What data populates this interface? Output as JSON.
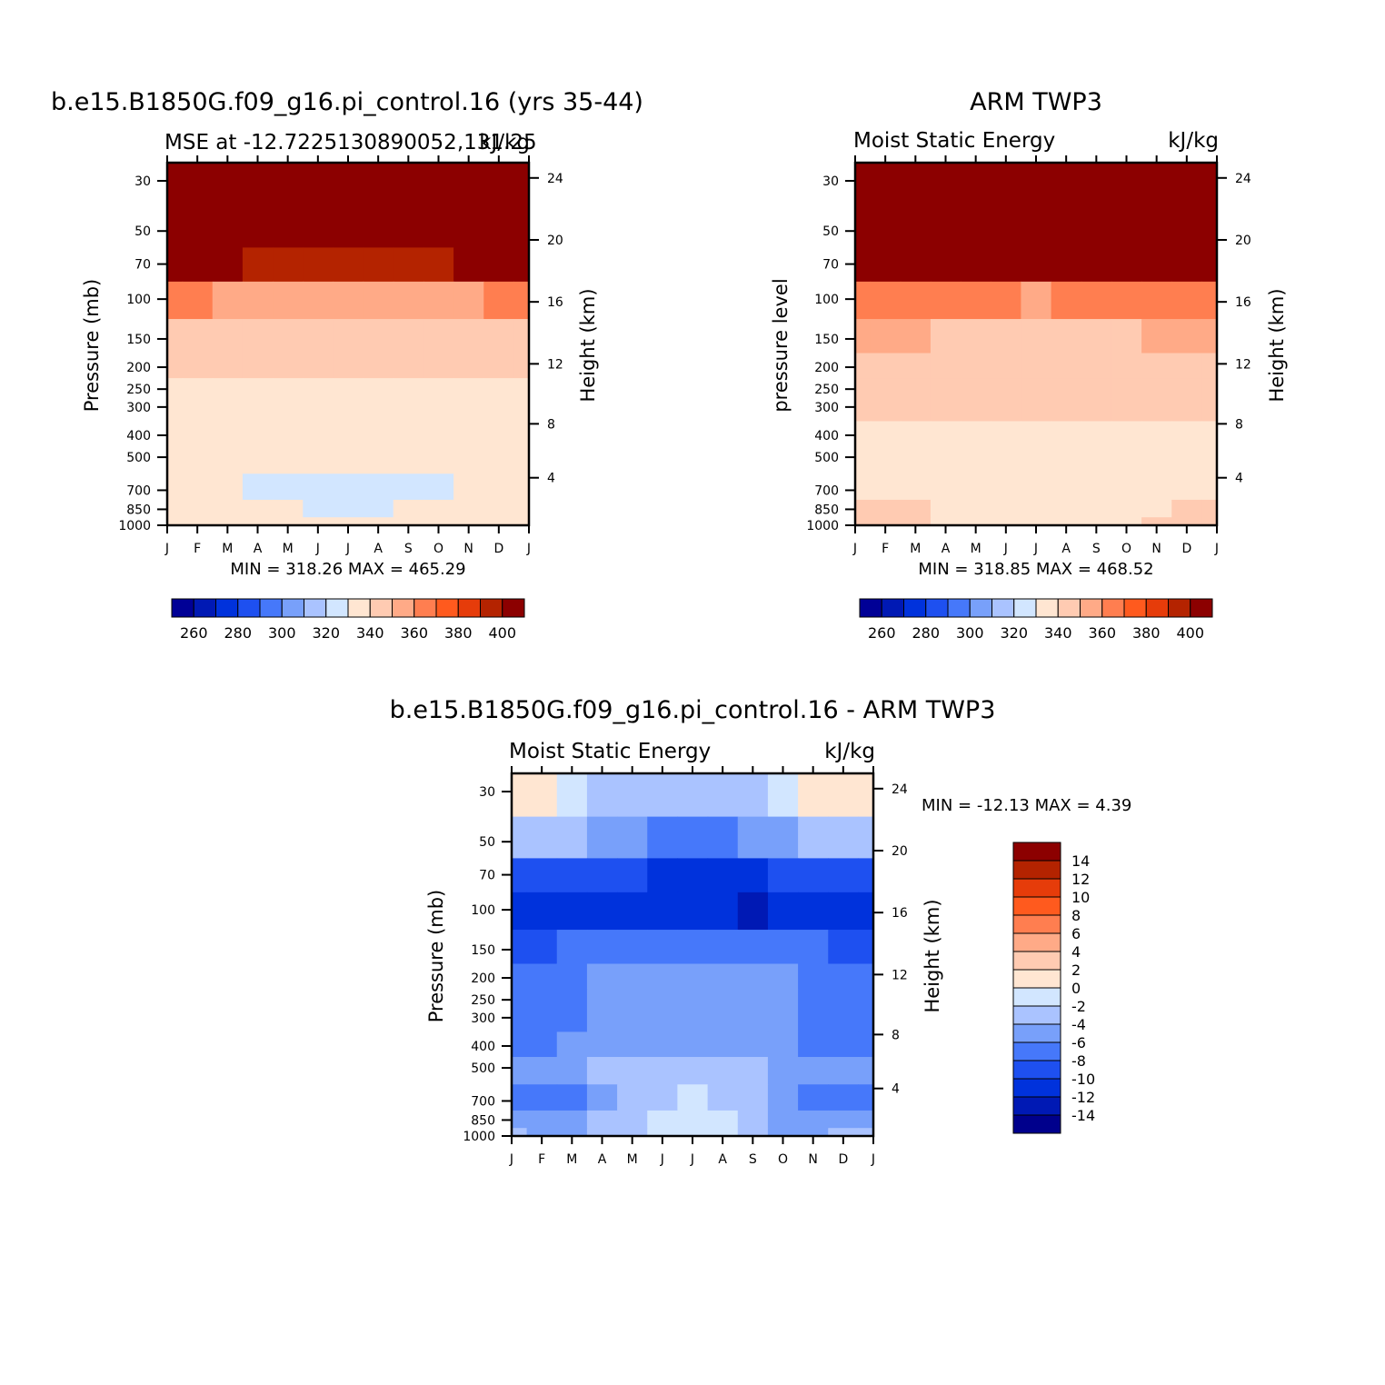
{
  "colors": {
    "mse_levels": [
      "#000096",
      "#0019b4",
      "#0032dc",
      "#1e50f0",
      "#4678fa",
      "#78a0fa",
      "#aac3ff",
      "#d2e6ff",
      "#ffe6d2",
      "#ffcbb2",
      "#ffaa87",
      "#ff7e50",
      "#ff5a1e",
      "#e63c0a",
      "#b42300",
      "#8c0000"
    ],
    "diff_levels": [
      "#00008c",
      "#0019b4",
      "#0032dc",
      "#1e50f0",
      "#4678fa",
      "#78a0fa",
      "#aac3ff",
      "#d2e6ff",
      "#ffe6d2",
      "#ffcbb2",
      "#ffaa87",
      "#ff7e50",
      "#ff5a1e",
      "#e63c0a",
      "#b42300",
      "#8c0000"
    ]
  },
  "panels": {
    "model": {
      "title": "b.e15.B1850G.f09_g16.pi_control.16 (yrs 35-44)",
      "left_string": "MSE at -12.7225130890052,131.25",
      "right_string": "kJ/kg",
      "ylabel_left": "Pressure (mb)",
      "ylabel_right": "Height (km)",
      "stats": "MIN = 318.26  MAX = 465.29"
    },
    "obs": {
      "title": "ARM TWP3",
      "left_string": "Moist Static Energy",
      "right_string": "kJ/kg",
      "ylabel_left": "pressure level",
      "ylabel_right": "Height (km)",
      "stats": "MIN = 318.85  MAX = 468.52"
    },
    "diff": {
      "title": "b.e15.B1850G.f09_g16.pi_control.16 - ARM TWP3",
      "left_string": "Moist Static Energy",
      "right_string": "kJ/kg",
      "ylabel_left": "Pressure (mb)",
      "ylabel_right": "Height (km)",
      "stats": "MIN = -12.13 MAX =    4.39"
    }
  },
  "chart_data": [
    {
      "type": "heatmap",
      "title": "b.e15.B1850G.f09_g16.pi_control.16 (yrs 35-44)",
      "x": [
        "J",
        "F",
        "M",
        "A",
        "M",
        "J",
        "J",
        "A",
        "S",
        "O",
        "N",
        "D",
        "J"
      ],
      "y_pressure_mb": [
        30,
        50,
        70,
        100,
        150,
        200,
        250,
        300,
        400,
        500,
        700,
        850,
        1000
      ],
      "y_height_km": [
        4,
        8,
        12,
        16,
        20,
        24
      ],
      "xlabel": "",
      "ylabel": "Pressure (mb)",
      "ylabel_right": "Height (km)",
      "units": "kJ/kg",
      "colorbar_labels": [
        "260",
        "280",
        "300",
        "320",
        "340",
        "360",
        "380",
        "400"
      ],
      "colorbar_levels": [
        255,
        260,
        265,
        270,
        275,
        280,
        285,
        290,
        295,
        300,
        305,
        310,
        315,
        320,
        325,
        330,
        335,
        340,
        345,
        350,
        355,
        360,
        365,
        370,
        375,
        380,
        385,
        390,
        395,
        400
      ],
      "min": 318.26,
      "max": 465.29,
      "values": [
        [
          420,
          420,
          420,
          420,
          420,
          420,
          420,
          420,
          420,
          420,
          420,
          420,
          420
        ],
        [
          400,
          400,
          398,
          397,
          396,
          395,
          394,
          395,
          396,
          397,
          398,
          399,
          400
        ],
        [
          388,
          387,
          386,
          385,
          384,
          383,
          382,
          383,
          384,
          385,
          386,
          387,
          388
        ],
        [
          355,
          354,
          353,
          352,
          352,
          351,
          351,
          351,
          352,
          352,
          353,
          354,
          355
        ],
        [
          343,
          343,
          342,
          341,
          341,
          341,
          341,
          341,
          341,
          340,
          340,
          340,
          342
        ],
        [
          338,
          338,
          338,
          338,
          338,
          338,
          338,
          338,
          338,
          338,
          338,
          338,
          338
        ],
        [
          335,
          335,
          335,
          335,
          335,
          335,
          335,
          335,
          335,
          335,
          335,
          335,
          335
        ],
        [
          333,
          333,
          333,
          333,
          333,
          333,
          333,
          333,
          333,
          333,
          333,
          333,
          333
        ],
        [
          330,
          330,
          330,
          330,
          329,
          329,
          329,
          329,
          329,
          329,
          330,
          330,
          330
        ],
        [
          327,
          327,
          327,
          326,
          325,
          325,
          325,
          325,
          325,
          325,
          326,
          327,
          327
        ],
        [
          325,
          325,
          325,
          324,
          323,
          322,
          322,
          322,
          323,
          324,
          325,
          325,
          325
        ],
        [
          330,
          330,
          328,
          326,
          325,
          324,
          324,
          324,
          325,
          326,
          328,
          330,
          330
        ],
        [
          337,
          336,
          334,
          332,
          329,
          328,
          328,
          328,
          329,
          332,
          334,
          336,
          337
        ]
      ]
    },
    {
      "type": "heatmap",
      "title": "ARM TWP3",
      "x": [
        "J",
        "F",
        "M",
        "A",
        "M",
        "J",
        "J",
        "A",
        "S",
        "O",
        "N",
        "D",
        "J"
      ],
      "y_pressure_mb": [
        30,
        50,
        70,
        100,
        150,
        200,
        250,
        300,
        400,
        500,
        700,
        850,
        1000
      ],
      "y_height_km": [
        4,
        8,
        12,
        16,
        20,
        24
      ],
      "xlabel": "",
      "ylabel": "pressure level",
      "ylabel_right": "Height (km)",
      "units": "kJ/kg",
      "colorbar_labels": [
        "260",
        "280",
        "300",
        "320",
        "340",
        "360",
        "380",
        "400"
      ],
      "colorbar_levels": [
        255,
        260,
        265,
        270,
        275,
        280,
        285,
        290,
        295,
        300,
        305,
        310,
        315,
        320,
        325,
        330,
        335,
        340,
        345,
        350,
        355,
        360,
        365,
        370,
        375,
        380,
        385,
        390,
        395,
        400
      ],
      "min": 318.85,
      "max": 468.52,
      "values": [
        [
          420,
          420,
          420,
          420,
          420,
          420,
          420,
          420,
          420,
          420,
          420,
          420,
          420
        ],
        [
          403,
          402,
          401,
          400,
          399,
          398,
          397,
          398,
          399,
          400,
          401,
          402,
          403
        ],
        [
          391,
          390,
          389,
          388,
          387,
          386,
          386,
          386,
          387,
          388,
          389,
          390,
          391
        ],
        [
          358,
          357,
          356,
          355,
          354,
          354,
          353,
          354,
          354,
          355,
          356,
          357,
          358
        ],
        [
          346,
          346,
          346,
          345,
          345,
          345,
          345,
          345,
          345,
          345,
          346,
          346,
          346
        ],
        [
          343,
          343,
          343,
          343,
          343,
          343,
          343,
          343,
          343,
          343,
          343,
          343,
          343
        ],
        [
          341,
          341,
          341,
          341,
          341,
          341,
          341,
          341,
          341,
          341,
          341,
          341,
          341
        ],
        [
          339,
          339,
          339,
          339,
          338,
          338,
          338,
          338,
          338,
          338,
          339,
          339,
          339
        ],
        [
          337,
          337,
          337,
          336,
          334,
          334,
          334,
          334,
          334,
          335,
          336,
          337,
          337
        ],
        [
          336,
          336,
          336,
          335,
          333,
          333,
          333,
          333,
          333,
          334,
          335,
          336,
          336
        ],
        [
          335,
          335,
          334,
          332,
          328,
          327,
          326,
          327,
          328,
          331,
          333,
          334,
          335
        ],
        [
          340,
          340,
          338,
          335,
          332,
          331,
          331,
          331,
          332,
          335,
          337,
          339,
          340
        ],
        [
          343,
          342,
          340,
          337,
          334,
          333,
          333,
          333,
          334,
          337,
          339,
          341,
          343
        ]
      ]
    },
    {
      "type": "heatmap",
      "title": "b.e15.B1850G.f09_g16.pi_control.16 - ARM TWP3",
      "x": [
        "J",
        "F",
        "M",
        "A",
        "M",
        "J",
        "J",
        "A",
        "S",
        "O",
        "N",
        "D",
        "J"
      ],
      "y_pressure_mb": [
        30,
        50,
        70,
        100,
        150,
        200,
        250,
        300,
        400,
        500,
        700,
        850,
        1000
      ],
      "y_height_km": [
        4,
        8,
        12,
        16,
        20,
        24
      ],
      "xlabel": "",
      "ylabel": "Pressure (mb)",
      "ylabel_right": "Height (km)",
      "units": "kJ/kg",
      "colorbar_labels": [
        "14",
        "12",
        "10",
        "8",
        "6",
        "4",
        "2",
        "0",
        "-2",
        "-4",
        "-6",
        "-8",
        "-10",
        "-12",
        "-14"
      ],
      "colorbar_levels": [
        -14,
        -12,
        -10,
        -8,
        -6,
        -4,
        -2,
        0,
        2,
        4,
        6,
        8,
        10,
        12,
        14
      ],
      "min": -12.13,
      "max": 4.39,
      "values": [
        [
          1.5,
          0.8,
          -1.0,
          -3.0,
          -4.0,
          -4.0,
          -3.5,
          -3.0,
          -2.5,
          -1.0,
          0.5,
          1.2,
          1.5
        ],
        [
          -2.5,
          -3.0,
          -4.0,
          -5.0,
          -6.0,
          -6.5,
          -6.8,
          -6.5,
          -6.0,
          -5.0,
          -4.0,
          -3.0,
          -2.5
        ],
        [
          -8.5,
          -8.8,
          -9.2,
          -9.6,
          -10.0,
          -10.5,
          -10.8,
          -10.5,
          -10.2,
          -9.8,
          -9.2,
          -8.8,
          -8.5
        ],
        [
          -10.5,
          -10.8,
          -11.0,
          -11.0,
          -11.0,
          -11.2,
          -11.5,
          -11.8,
          -12.1,
          -11.5,
          -11.0,
          -10.6,
          -10.5
        ],
        [
          -8.5,
          -8.3,
          -8.0,
          -7.5,
          -7.0,
          -6.8,
          -6.6,
          -6.6,
          -6.8,
          -7.0,
          -7.6,
          -8.2,
          -8.5
        ],
        [
          -7.5,
          -7.2,
          -6.5,
          -5.5,
          -5.0,
          -5.0,
          -5.0,
          -5.0,
          -5.2,
          -5.6,
          -6.8,
          -7.5,
          -7.5
        ],
        [
          -7.2,
          -7.0,
          -6.5,
          -5.5,
          -5.0,
          -5.0,
          -5.0,
          -5.0,
          -5.0,
          -5.5,
          -6.7,
          -7.2,
          -7.2
        ],
        [
          -7.0,
          -6.9,
          -6.4,
          -5.4,
          -5.0,
          -5.0,
          -5.0,
          -5.0,
          -5.0,
          -5.4,
          -6.6,
          -7.1,
          -7.0
        ],
        [
          -6.2,
          -6.4,
          -6.0,
          -5.2,
          -5.0,
          -5.0,
          -5.0,
          -5.0,
          -5.0,
          -5.2,
          -6.2,
          -6.8,
          -6.2
        ],
        [
          -5.0,
          -5.0,
          -4.6,
          -4.0,
          -3.8,
          -3.6,
          -3.5,
          -3.6,
          -3.8,
          -4.2,
          -4.8,
          -5.0,
          -5.0
        ],
        [
          -6.5,
          -7.5,
          -7.0,
          -4.5,
          -3.5,
          -2.5,
          -2.0,
          -2.5,
          -3.5,
          -4.5,
          -6.5,
          -8.0,
          -6.5
        ],
        [
          -5.0,
          -5.5,
          -5.0,
          -4.0,
          -3.0,
          -2.0,
          -1.5,
          -2.0,
          -3.5,
          -4.5,
          -5.5,
          -6.0,
          -5.0
        ],
        [
          -4.0,
          -4.5,
          -4.5,
          -4.0,
          -3.0,
          -2.0,
          -1.5,
          -2.0,
          -4.0,
          -5.0,
          -4.5,
          -4.0,
          -4.0
        ]
      ]
    }
  ]
}
